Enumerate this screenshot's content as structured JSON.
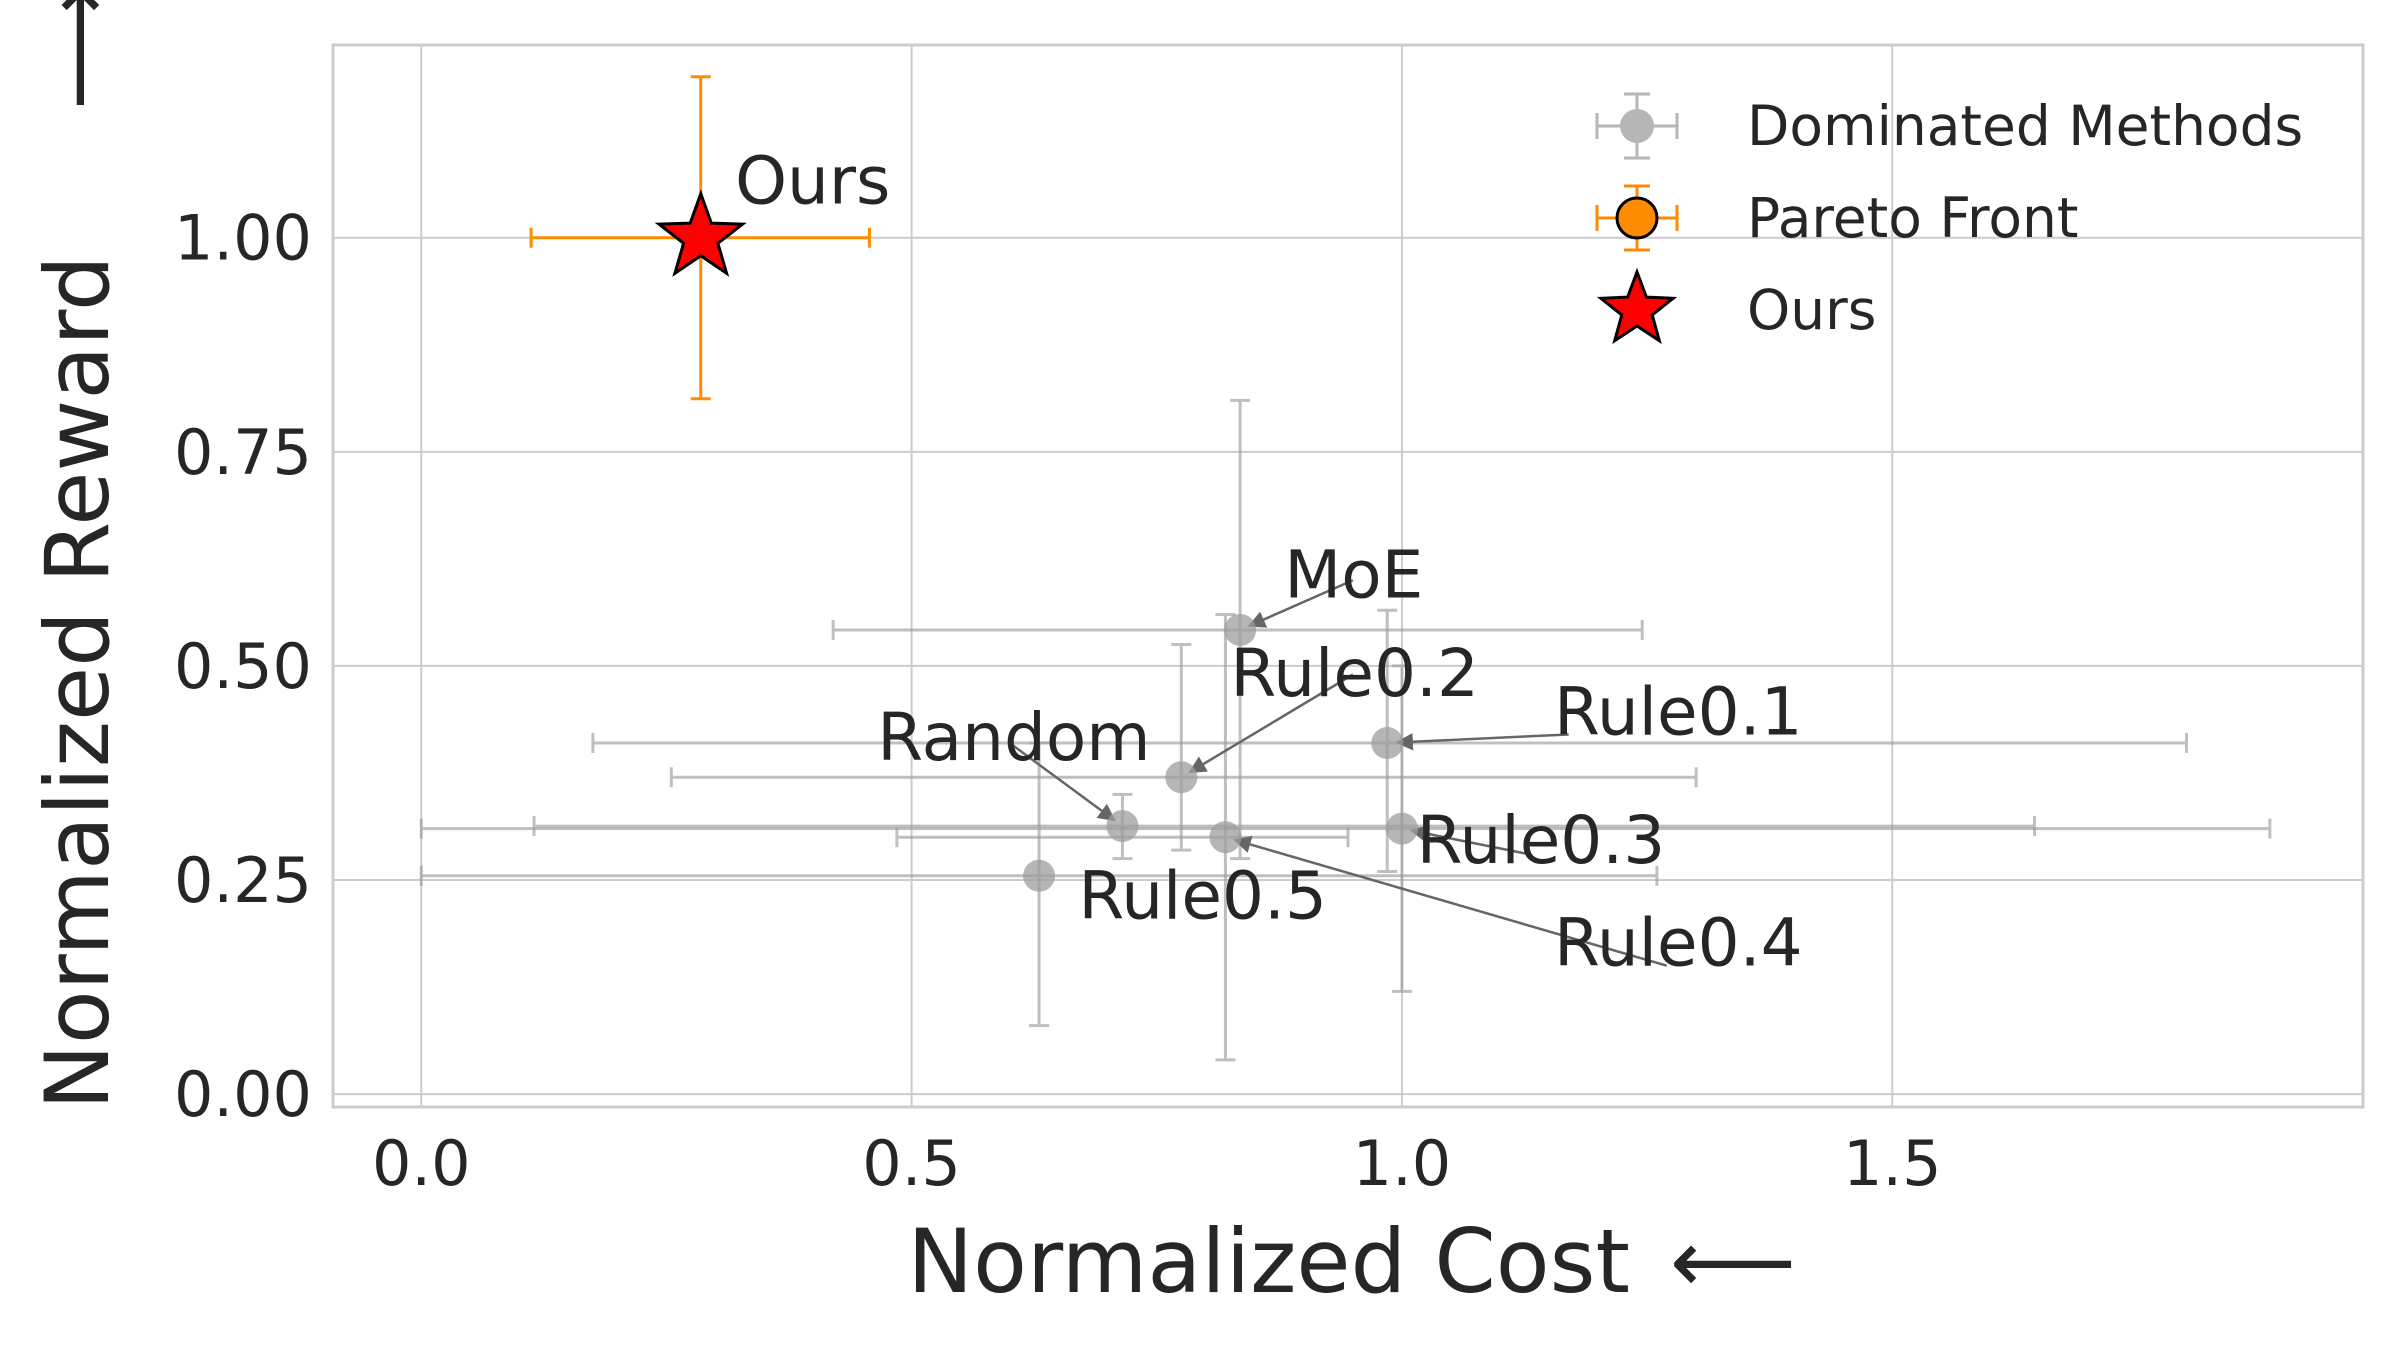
{
  "chart_data": {
    "type": "scatter",
    "xlabel": "Normalized Cost",
    "ylabel": "Normalized Reward",
    "xlabel_arrow": "⟵",
    "ylabel_arrow": "⟶",
    "xlim": [
      -0.09,
      1.98
    ],
    "ylim": [
      -0.015,
      1.225
    ],
    "xticks": [
      0.0,
      0.5,
      1.0,
      1.5
    ],
    "xtick_labels": [
      "0.0",
      "0.5",
      "1.0",
      "1.5"
    ],
    "yticks": [
      0.0,
      0.25,
      0.5,
      0.75,
      1.0
    ],
    "ytick_labels": [
      "0.00",
      "0.25",
      "0.50",
      "0.75",
      "1.00"
    ],
    "grid": true,
    "legend_position": "top-right",
    "colors": {
      "dominated": "#9e9e9e",
      "pareto": "#ff8c00",
      "ours_fill": "#ff0000",
      "grid": "#cccccc",
      "text": "#262626"
    },
    "series": [
      {
        "name": "Dominated Methods",
        "points": [
          {
            "label": "MoE",
            "x": 0.835,
            "y": 0.542,
            "xerr": [
              0.42,
              1.245
            ],
            "yerr": [
              0.275,
              0.81
            ],
            "label_pos": [
              0.88,
              0.58
            ],
            "arrow_from": [
              0.95,
              0.6
            ]
          },
          {
            "label": "Rule0.2",
            "x": 0.775,
            "y": 0.37,
            "xerr": [
              0.255,
              1.3
            ],
            "yerr": [
              0.285,
              0.525
            ],
            "label_pos": [
              0.825,
              0.465
            ],
            "arrow_from": [
              0.95,
              0.49
            ]
          },
          {
            "label": "Rule0.1",
            "x": 0.985,
            "y": 0.41,
            "xerr": [
              0.175,
              1.8
            ],
            "yerr": [
              0.26,
              0.565
            ],
            "label_pos": [
              1.155,
              0.42
            ],
            "arrow_from": [
              1.17,
              0.42
            ]
          },
          {
            "label": "Random",
            "x": 0.715,
            "y": 0.313,
            "xerr": [
              0.115,
              1.645
            ],
            "yerr": [
              0.275,
              0.35
            ],
            "label_pos": [
              0.465,
              0.39
            ],
            "arrow_from": [
              0.6,
              0.41
            ]
          },
          {
            "label": "Rule0.3",
            "x": 1.0,
            "y": 0.31,
            "xerr": [
              0.0,
              1.885
            ],
            "yerr": [
              0.12,
              0.5
            ],
            "label_pos": [
              1.015,
              0.27
            ],
            "arrow_from": [
              1.13,
              0.28
            ]
          },
          {
            "label": "Rule0.4",
            "x": 0.82,
            "y": 0.3,
            "xerr": [
              0.485,
              0.945
            ],
            "yerr": [
              0.04,
              0.56
            ],
            "label_pos": [
              1.155,
              0.15
            ],
            "arrow_from": [
              1.27,
              0.15
            ]
          },
          {
            "label": "Rule0.5",
            "x": 0.63,
            "y": 0.255,
            "xerr": [
              0.0,
              1.26
            ],
            "yerr": [
              0.08,
              0.41
            ],
            "label_pos": [
              0.67,
              0.205
            ],
            "arrow_from": null
          }
        ]
      },
      {
        "name": "Pareto Front",
        "points": [
          {
            "label": "",
            "x": 0.285,
            "y": 1.0,
            "xerr": [
              0.112,
              0.457
            ],
            "yerr": [
              0.812,
              1.188
            ]
          }
        ]
      },
      {
        "name": "Ours",
        "points": [
          {
            "label": "Ours",
            "x": 0.285,
            "y": 1.0,
            "label_pos": [
              0.32,
              1.04
            ]
          }
        ]
      }
    ]
  }
}
